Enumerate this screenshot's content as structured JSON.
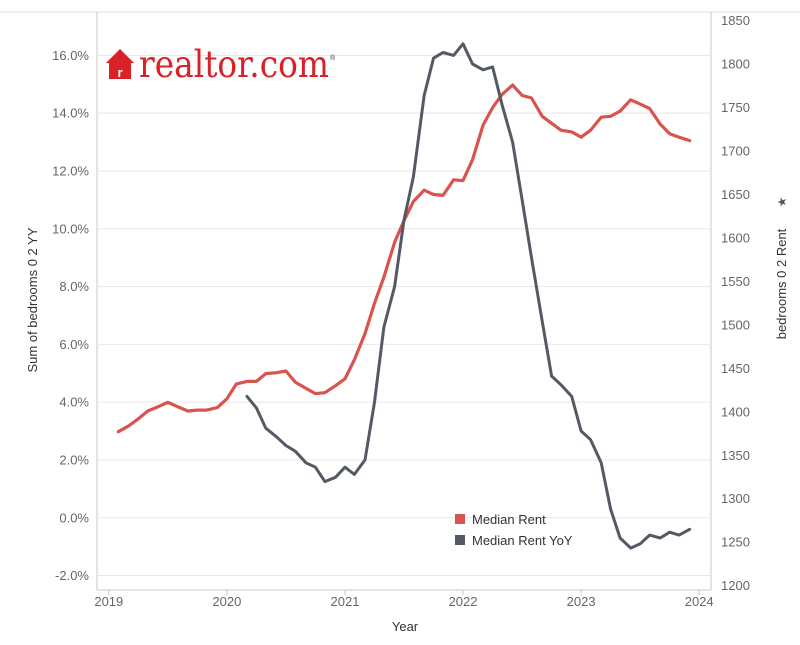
{
  "logo": {
    "text": "realtor.com",
    "registered_mark": "®",
    "icon": "house-r-icon"
  },
  "colors": {
    "median_rent": "#d9534f",
    "median_rent_yoy": "#545a63",
    "logo": "#d92228",
    "grid": "#e8e8e8"
  },
  "chart_data": {
    "type": "line",
    "title": "",
    "xlabel": "Year",
    "ylabel_left": "Sum of bedrooms 0 2 YY",
    "ylabel_right": "bedrooms 0 2 Rent",
    "ylabel_right_icon": "sort-star-icon",
    "xlim": [
      2018.9,
      2024.1
    ],
    "ylim_left": [
      -2.5,
      17.5
    ],
    "ylim_right": [
      1195,
      1860
    ],
    "x_ticks": [
      2019,
      2020,
      2021,
      2022,
      2023,
      2024
    ],
    "x_tick_labels": [
      "2019",
      "2020",
      "2021",
      "2022",
      "2023",
      "2024"
    ],
    "y_left_ticks": [
      -2,
      0,
      2,
      4,
      6,
      8,
      10,
      12,
      14,
      16
    ],
    "y_left_tick_labels": [
      "-2.0%",
      "0.0%",
      "2.0%",
      "4.0%",
      "6.0%",
      "8.0%",
      "10.0%",
      "12.0%",
      "14.0%",
      "16.0%"
    ],
    "y_right_ticks": [
      1200,
      1250,
      1300,
      1350,
      1400,
      1450,
      1500,
      1550,
      1600,
      1650,
      1700,
      1750,
      1800,
      1850
    ],
    "y_right_tick_labels": [
      "1200",
      "1250",
      "1300",
      "1350",
      "1400",
      "1450",
      "1500",
      "1550",
      "1600",
      "1650",
      "1700",
      "1750",
      "1800",
      "1850"
    ],
    "legend": {
      "position": "bottom-right",
      "entries": [
        "Median Rent",
        "Median Rent YoY"
      ]
    },
    "series": [
      {
        "name": "Median Rent",
        "axis": "right",
        "x": [
          2019.08,
          2019.17,
          2019.25,
          2019.33,
          2019.42,
          2019.5,
          2019.58,
          2019.67,
          2019.75,
          2019.83,
          2019.92,
          2020.0,
          2020.08,
          2020.17,
          2020.25,
          2020.33,
          2020.42,
          2020.5,
          2020.58,
          2020.67,
          2020.75,
          2020.83,
          2020.92,
          2021.0,
          2021.08,
          2021.17,
          2021.25,
          2021.33,
          2021.42,
          2021.5,
          2021.58,
          2021.67,
          2021.75,
          2021.83,
          2021.92,
          2022.0,
          2022.08,
          2022.17,
          2022.25,
          2022.33,
          2022.42,
          2022.5,
          2022.58,
          2022.67,
          2022.75,
          2022.83,
          2022.92,
          2023.0,
          2023.08,
          2023.17,
          2023.25,
          2023.33,
          2023.42,
          2023.5,
          2023.58,
          2023.67,
          2023.75,
          2023.83,
          2023.92
        ],
        "values": [
          1377,
          1384,
          1392,
          1401,
          1406,
          1411,
          1406,
          1401,
          1402,
          1402,
          1405,
          1415,
          1432,
          1435,
          1435,
          1444,
          1445,
          1447,
          1434,
          1427,
          1421,
          1422,
          1430,
          1438,
          1460,
          1490,
          1525,
          1555,
          1595,
          1620,
          1642,
          1655,
          1650,
          1649,
          1667,
          1666,
          1690,
          1730,
          1750,
          1765,
          1776,
          1764,
          1761,
          1740,
          1732,
          1724,
          1722,
          1716,
          1724,
          1739,
          1740,
          1746,
          1759,
          1754,
          1749,
          1731,
          1720,
          1716,
          1712
        ]
      },
      {
        "name": "Median Rent YoY",
        "axis": "left",
        "x": [
          2020.17,
          2020.25,
          2020.33,
          2020.42,
          2020.5,
          2020.58,
          2020.67,
          2020.75,
          2020.83,
          2020.92,
          2021.0,
          2021.08,
          2021.17,
          2021.25,
          2021.33,
          2021.42,
          2021.5,
          2021.58,
          2021.67,
          2021.75,
          2021.83,
          2021.92,
          2022.0,
          2022.08,
          2022.17,
          2022.25,
          2022.33,
          2022.42,
          2022.5,
          2022.58,
          2022.67,
          2022.75,
          2022.83,
          2022.92,
          2023.0,
          2023.08,
          2023.17,
          2023.25,
          2023.33,
          2023.42,
          2023.5,
          2023.58,
          2023.67,
          2023.75,
          2023.83,
          2023.92
        ],
        "values": [
          4.2,
          3.8,
          3.1,
          2.8,
          2.5,
          2.3,
          1.9,
          1.75,
          1.25,
          1.4,
          1.75,
          1.5,
          2.0,
          4.0,
          6.6,
          8.0,
          10.3,
          11.8,
          14.6,
          15.9,
          16.1,
          16.0,
          16.4,
          15.7,
          15.5,
          15.6,
          14.3,
          13.0,
          11.0,
          9.0,
          6.8,
          4.9,
          4.6,
          4.2,
          3.0,
          2.7,
          1.9,
          0.3,
          -0.7,
          -1.05,
          -0.9,
          -0.6,
          -0.7,
          -0.5,
          -0.6,
          -0.4
        ]
      }
    ]
  }
}
